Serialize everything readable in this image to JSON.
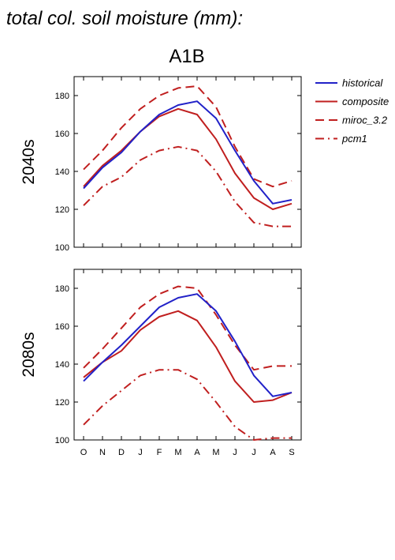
{
  "title": "total col. soil moisture (mm):",
  "scenario": "A1B",
  "colors": {
    "historical": "#2121c8",
    "composite": "#c01f1f",
    "miroc_3.2": "#c01f1f",
    "pcm1": "#c01f1f"
  },
  "legend": {
    "placement": "right",
    "entries": [
      {
        "key": "historical",
        "label": "historical",
        "style": "solid"
      },
      {
        "key": "composite",
        "label": "composite",
        "style": "solid"
      },
      {
        "key": "miroc_3.2",
        "label": "miroc_3.2",
        "style": "dashed"
      },
      {
        "key": "pcm1",
        "label": "pcm1",
        "style": "dashdot"
      }
    ]
  },
  "chart_data": [
    {
      "type": "line",
      "panel": "2040s",
      "ylabel": "2040s",
      "categories": [
        "O",
        "N",
        "D",
        "J",
        "F",
        "M",
        "A",
        "M",
        "J",
        "J",
        "A",
        "S"
      ],
      "ylim": [
        100,
        190
      ],
      "yticks": [
        100,
        120,
        140,
        160,
        180
      ],
      "series": [
        {
          "name": "historical",
          "style": "solid",
          "values": [
            131,
            142,
            150,
            161,
            170,
            175,
            177,
            168,
            151,
            135,
            123,
            125
          ]
        },
        {
          "name": "composite",
          "style": "solid",
          "values": [
            132,
            143,
            151,
            161,
            169,
            173,
            170,
            157,
            139,
            126,
            120,
            123
          ]
        },
        {
          "name": "miroc_3.2",
          "style": "dashed",
          "values": [
            141,
            151,
            163,
            173,
            180,
            184,
            185,
            174,
            153,
            136,
            132,
            135
          ]
        },
        {
          "name": "pcm1",
          "style": "dashdot",
          "values": [
            122,
            132,
            137,
            146,
            151,
            153,
            151,
            140,
            124,
            113,
            111,
            111
          ]
        }
      ]
    },
    {
      "type": "line",
      "panel": "2080s",
      "ylabel": "2080s",
      "categories": [
        "O",
        "N",
        "D",
        "J",
        "F",
        "M",
        "A",
        "M",
        "J",
        "J",
        "A",
        "S"
      ],
      "ylim": [
        100,
        190
      ],
      "yticks": [
        100,
        120,
        140,
        160,
        180
      ],
      "series": [
        {
          "name": "historical",
          "style": "solid",
          "values": [
            131,
            141,
            150,
            160,
            170,
            175,
            177,
            168,
            152,
            134,
            123,
            125
          ]
        },
        {
          "name": "composite",
          "style": "solid",
          "values": [
            133,
            141,
            147,
            158,
            165,
            168,
            163,
            149,
            131,
            120,
            121,
            125
          ]
        },
        {
          "name": "miroc_3.2",
          "style": "dashed",
          "values": [
            138,
            148,
            159,
            170,
            177,
            181,
            180,
            166,
            150,
            137,
            139,
            139
          ]
        },
        {
          "name": "pcm1",
          "style": "dashdot",
          "values": [
            108,
            118,
            126,
            134,
            137,
            137,
            132,
            120,
            107,
            100,
            101,
            101
          ]
        }
      ]
    }
  ]
}
